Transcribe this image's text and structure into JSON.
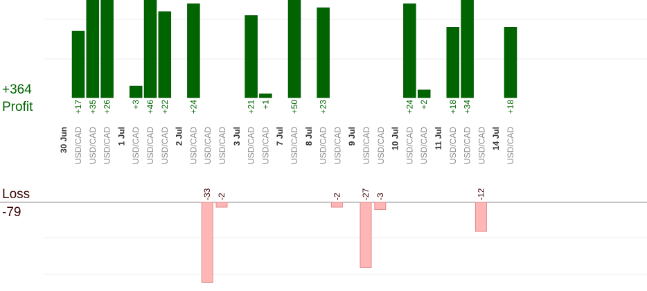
{
  "summary": {
    "profit_total": "+364",
    "profit_label": "Profit",
    "loss_label": "Loss",
    "loss_total": "-79"
  },
  "colors": {
    "profit_bar": "#006400",
    "profit_bar_edge": "#004a00",
    "loss_bar": "#ffb6b6",
    "loss_bar_edge": "#e08a8a",
    "profit_text": "#006400",
    "loss_text": "#3a0000",
    "pair_text": "#888888",
    "date_text": "#333333",
    "grid": "#eeeeee",
    "axis": "#888888"
  },
  "chart_data": {
    "type": "bar",
    "title": "",
    "grid": true,
    "profit_ylim": [
      0,
      50
    ],
    "loss_ylim": [
      -33,
      0
    ],
    "dates": [
      "30 Jun",
      "1 Jul",
      "2 Jul",
      "3 Jul",
      "7 Jul",
      "8 Jul",
      "9 Jul",
      "10 Jul",
      "11 Jul",
      "14 Jul"
    ],
    "trades": [
      {
        "date": "30 Jun",
        "pair": "USD/CAD",
        "value": 17,
        "label": "+17"
      },
      {
        "date": "30 Jun",
        "pair": "USD/CAD",
        "value": 35,
        "label": "+35"
      },
      {
        "date": "30 Jun",
        "pair": "USD/CAD",
        "value": 26,
        "label": "+26"
      },
      {
        "date": "1 Jul",
        "pair": "USD/CAD",
        "value": 3,
        "label": "+3"
      },
      {
        "date": "1 Jul",
        "pair": "USD/CAD",
        "value": 46,
        "label": "+46"
      },
      {
        "date": "1 Jul",
        "pair": "USD/CAD",
        "value": 22,
        "label": "+22"
      },
      {
        "date": "2 Jul",
        "pair": "USD/CAD",
        "value": 24,
        "label": "+24"
      },
      {
        "date": "2 Jul",
        "pair": "USD/CAD",
        "value": -33,
        "label": "-33"
      },
      {
        "date": "2 Jul",
        "pair": "USD/CAD",
        "value": -2,
        "label": "-2"
      },
      {
        "date": "3 Jul",
        "pair": "USD/CAD",
        "value": 21,
        "label": "+21"
      },
      {
        "date": "3 Jul",
        "pair": "USD/CAD",
        "value": 1,
        "label": "+1"
      },
      {
        "date": "7 Jul",
        "pair": "USD/CAD",
        "value": 50,
        "label": "+50"
      },
      {
        "date": "8 Jul",
        "pair": "USD/CAD",
        "value": 23,
        "label": "+23"
      },
      {
        "date": "8 Jul",
        "pair": "USD/CAD",
        "value": -2,
        "label": "-2"
      },
      {
        "date": "9 Jul",
        "pair": "USD/CAD",
        "value": -27,
        "label": "-27"
      },
      {
        "date": "9 Jul",
        "pair": "USD/CAD",
        "value": -3,
        "label": "-3"
      },
      {
        "date": "10 Jul",
        "pair": "USD/CAD",
        "value": 24,
        "label": "+24"
      },
      {
        "date": "10 Jul",
        "pair": "USD/CAD",
        "value": 2,
        "label": "+2"
      },
      {
        "date": "11 Jul",
        "pair": "USD/CAD",
        "value": 18,
        "label": "+18"
      },
      {
        "date": "11 Jul",
        "pair": "USD/CAD",
        "value": 34,
        "label": "+34"
      },
      {
        "date": "11 Jul",
        "pair": "USD/CAD",
        "value": -12,
        "label": "-12"
      },
      {
        "date": "14 Jul",
        "pair": "USD/CAD",
        "value": 18,
        "label": "+18"
      }
    ]
  }
}
